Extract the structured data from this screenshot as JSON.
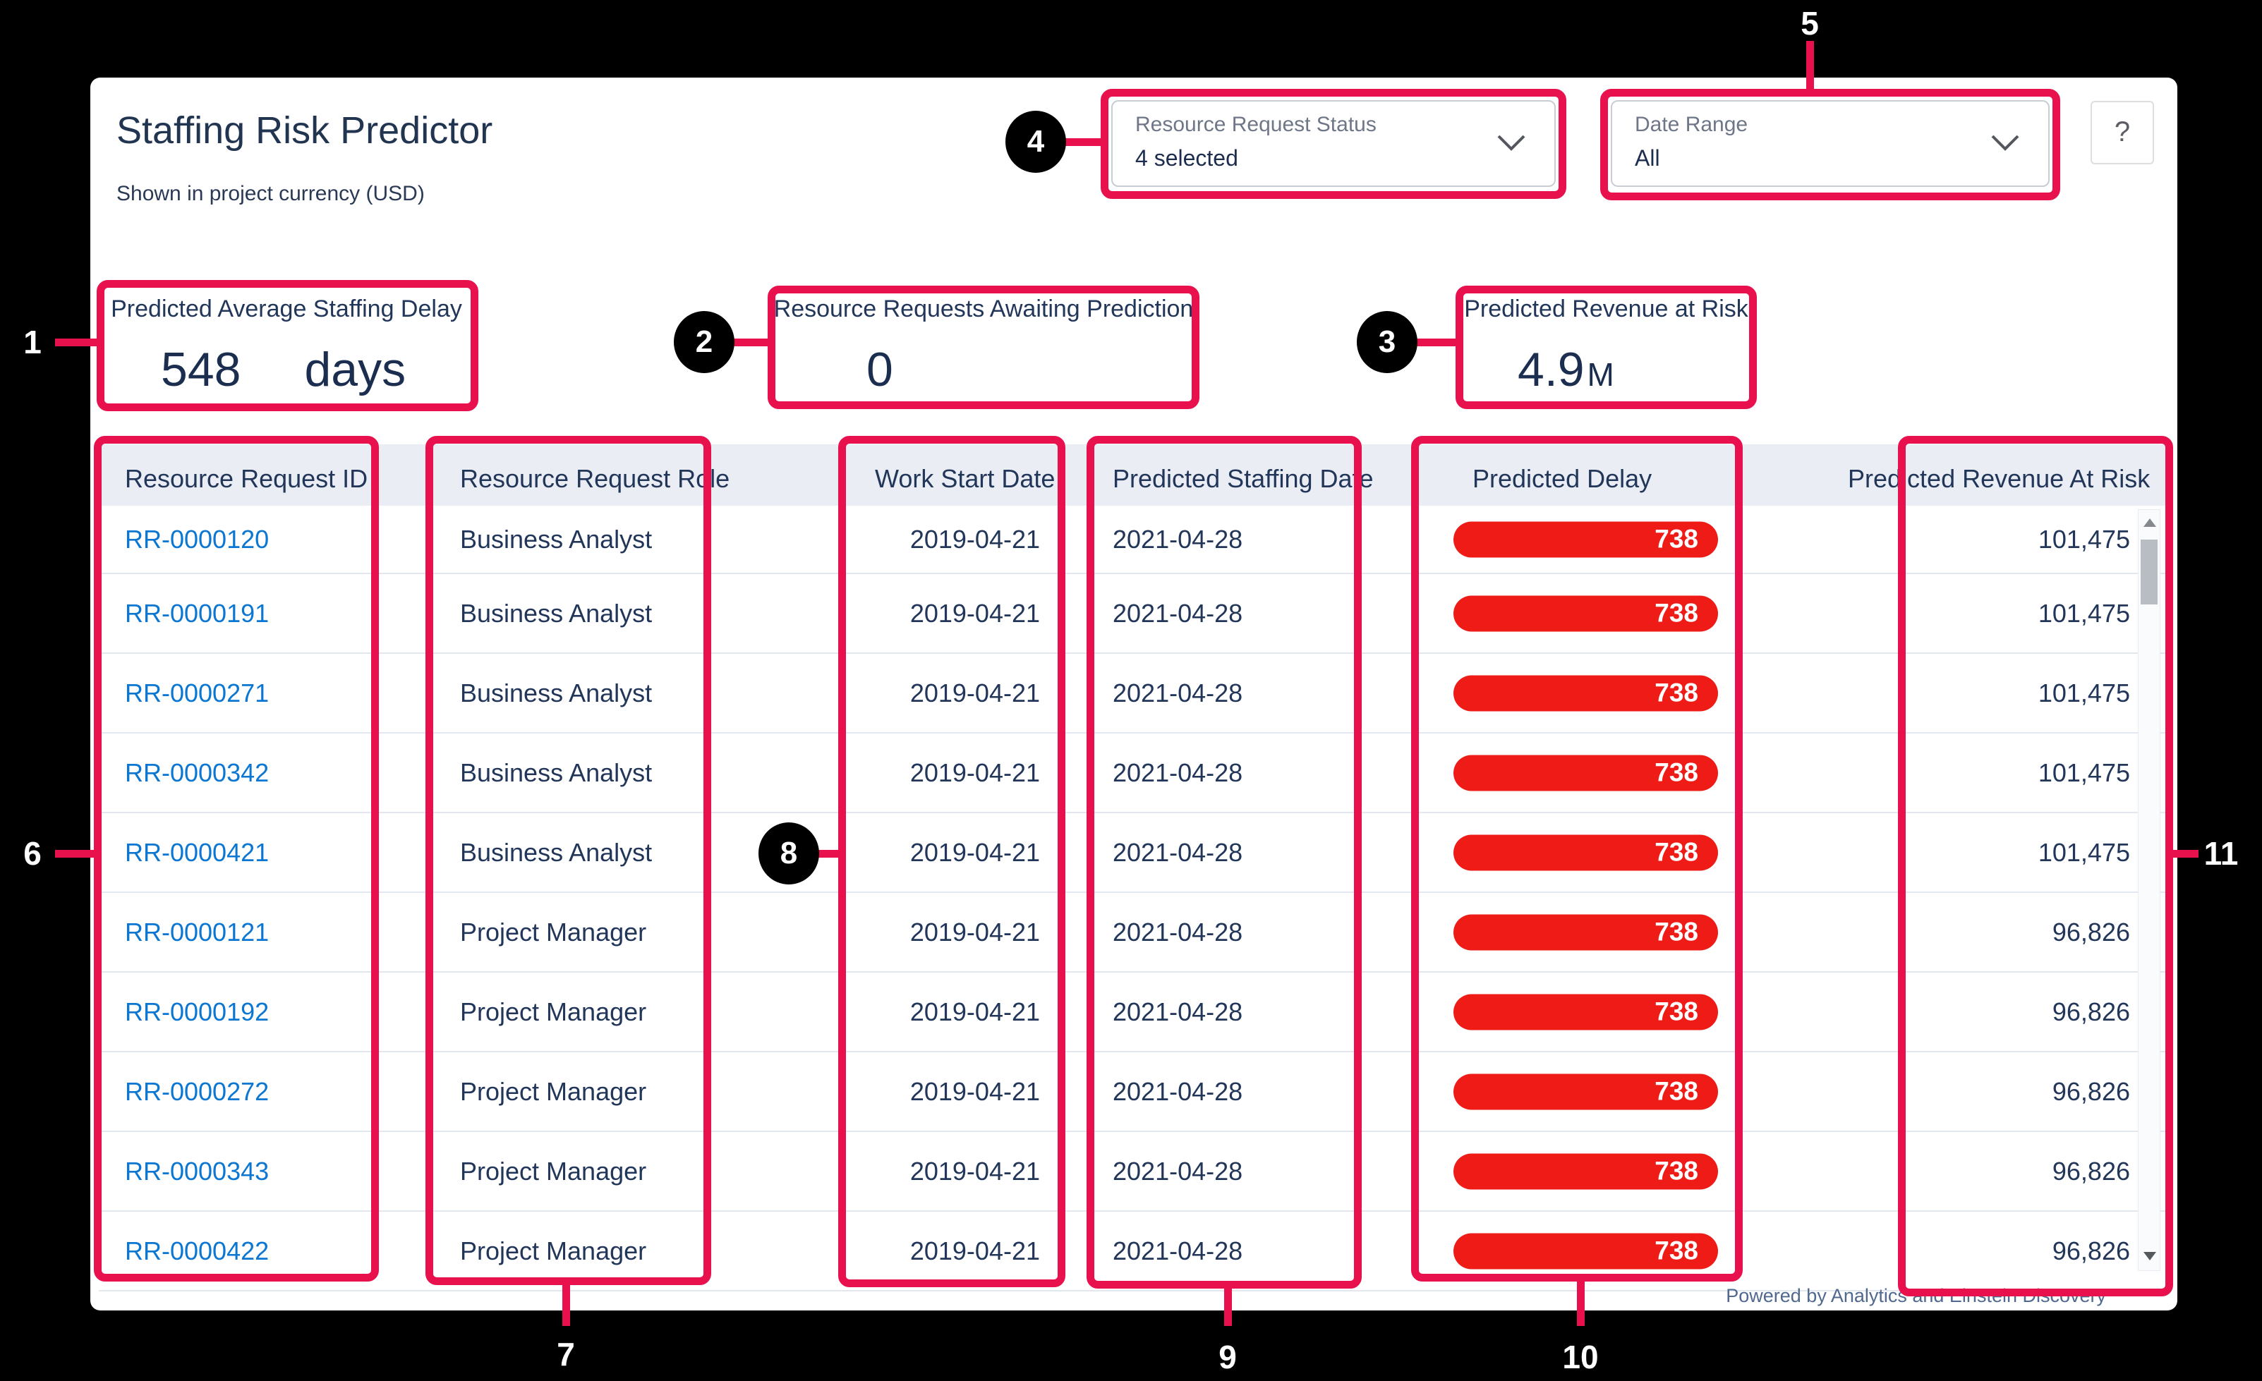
{
  "app": {
    "title": "Staffing Risk Predictor",
    "subtitle": "Shown in project currency (USD)",
    "help_label": "?"
  },
  "filters": {
    "status": {
      "label": "Resource Request Status",
      "value": "4 selected"
    },
    "date_range": {
      "label": "Date Range",
      "value": "All"
    }
  },
  "kpis": {
    "staffing_delay": {
      "label": "Predicted Average Staffing Delay",
      "value": "548",
      "unit": "days"
    },
    "awaiting_prediction": {
      "label": "Resource Requests Awaiting Prediction",
      "value": "0"
    },
    "revenue_at_risk": {
      "label": "Predicted Revenue at Risk",
      "value": "4.9",
      "unit": "M"
    }
  },
  "table": {
    "columns": [
      "Resource Request ID",
      "Resource Request Role",
      "Work Start Date",
      "Predicted Staffing Date",
      "Predicted Delay",
      "Predicted Revenue At Risk"
    ],
    "rows": [
      {
        "id": "RR-0000120",
        "role": "Business Analyst",
        "start": "2019-04-21",
        "staffed": "2021-04-28",
        "delay": "738",
        "risk": "101,475"
      },
      {
        "id": "RR-0000191",
        "role": "Business Analyst",
        "start": "2019-04-21",
        "staffed": "2021-04-28",
        "delay": "738",
        "risk": "101,475"
      },
      {
        "id": "RR-0000271",
        "role": "Business Analyst",
        "start": "2019-04-21",
        "staffed": "2021-04-28",
        "delay": "738",
        "risk": "101,475"
      },
      {
        "id": "RR-0000342",
        "role": "Business Analyst",
        "start": "2019-04-21",
        "staffed": "2021-04-28",
        "delay": "738",
        "risk": "101,475"
      },
      {
        "id": "RR-0000421",
        "role": "Business Analyst",
        "start": "2019-04-21",
        "staffed": "2021-04-28",
        "delay": "738",
        "risk": "101,475"
      },
      {
        "id": "RR-0000121",
        "role": "Project Manager",
        "start": "2019-04-21",
        "staffed": "2021-04-28",
        "delay": "738",
        "risk": "96,826"
      },
      {
        "id": "RR-0000192",
        "role": "Project Manager",
        "start": "2019-04-21",
        "staffed": "2021-04-28",
        "delay": "738",
        "risk": "96,826"
      },
      {
        "id": "RR-0000272",
        "role": "Project Manager",
        "start": "2019-04-21",
        "staffed": "2021-04-28",
        "delay": "738",
        "risk": "96,826"
      },
      {
        "id": "RR-0000343",
        "role": "Project Manager",
        "start": "2019-04-21",
        "staffed": "2021-04-28",
        "delay": "738",
        "risk": "96,826"
      },
      {
        "id": "RR-0000422",
        "role": "Project Manager",
        "start": "2019-04-21",
        "staffed": "2021-04-28",
        "delay": "738",
        "risk": "96,826"
      }
    ]
  },
  "footer": {
    "powered_by": "Powered by Analytics and Einstein Discovery"
  },
  "annotations": {
    "callouts": [
      "1",
      "2",
      "3",
      "4",
      "5",
      "6",
      "7",
      "8",
      "9",
      "10",
      "11"
    ]
  },
  "colors": {
    "annotation": "#e8114e",
    "delay_pill": "#ee1b17",
    "link": "#0b77d2",
    "header_bg": "#eaeef4",
    "text": "#22365a"
  }
}
